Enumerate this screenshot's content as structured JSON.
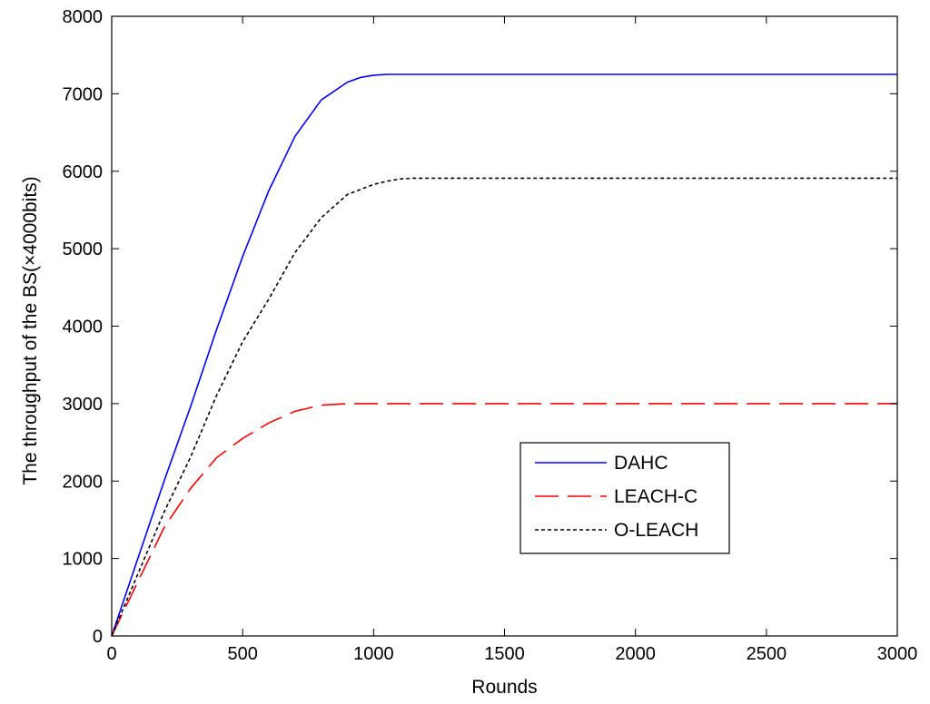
{
  "chart_data": {
    "type": "line",
    "title": "",
    "xlabel": "Rounds",
    "ylabel": "The throughput of the BS(×4000bits)",
    "xlim": [
      0,
      3000
    ],
    "ylim": [
      0,
      8000
    ],
    "xticks": [
      0,
      500,
      1000,
      1500,
      2000,
      2500,
      3000
    ],
    "yticks": [
      0,
      1000,
      2000,
      3000,
      4000,
      5000,
      6000,
      7000,
      8000
    ],
    "grid": false,
    "legend_position": "lower-right",
    "series": [
      {
        "name": "DAHC",
        "color": "#0000ff",
        "style": "solid",
        "x": [
          0,
          50,
          100,
          200,
          300,
          400,
          500,
          600,
          700,
          800,
          900,
          950,
          1000,
          1050,
          1100,
          1500,
          2000,
          2500,
          3000
        ],
        "y": [
          0,
          500,
          1000,
          2000,
          2950,
          3950,
          4900,
          5750,
          6450,
          6920,
          7150,
          7210,
          7240,
          7250,
          7250,
          7250,
          7250,
          7250,
          7250
        ]
      },
      {
        "name": "LEACH-C",
        "color": "#ff0000",
        "style": "dashed",
        "x": [
          0,
          50,
          100,
          200,
          300,
          400,
          500,
          600,
          700,
          800,
          900,
          1000,
          1500,
          2000,
          2500,
          3000
        ],
        "y": [
          0,
          350,
          700,
          1400,
          1900,
          2300,
          2550,
          2750,
          2900,
          2980,
          3000,
          3000,
          3000,
          3000,
          3000,
          3000
        ]
      },
      {
        "name": "O-LEACH",
        "color": "#000000",
        "style": "dotted",
        "x": [
          0,
          50,
          100,
          200,
          300,
          400,
          500,
          600,
          700,
          800,
          900,
          1000,
          1050,
          1100,
          1150,
          1500,
          2000,
          2500,
          3000
        ],
        "y": [
          0,
          400,
          800,
          1600,
          2300,
          3100,
          3800,
          4350,
          4950,
          5400,
          5700,
          5830,
          5870,
          5900,
          5910,
          5910,
          5910,
          5910,
          5910
        ]
      }
    ]
  }
}
